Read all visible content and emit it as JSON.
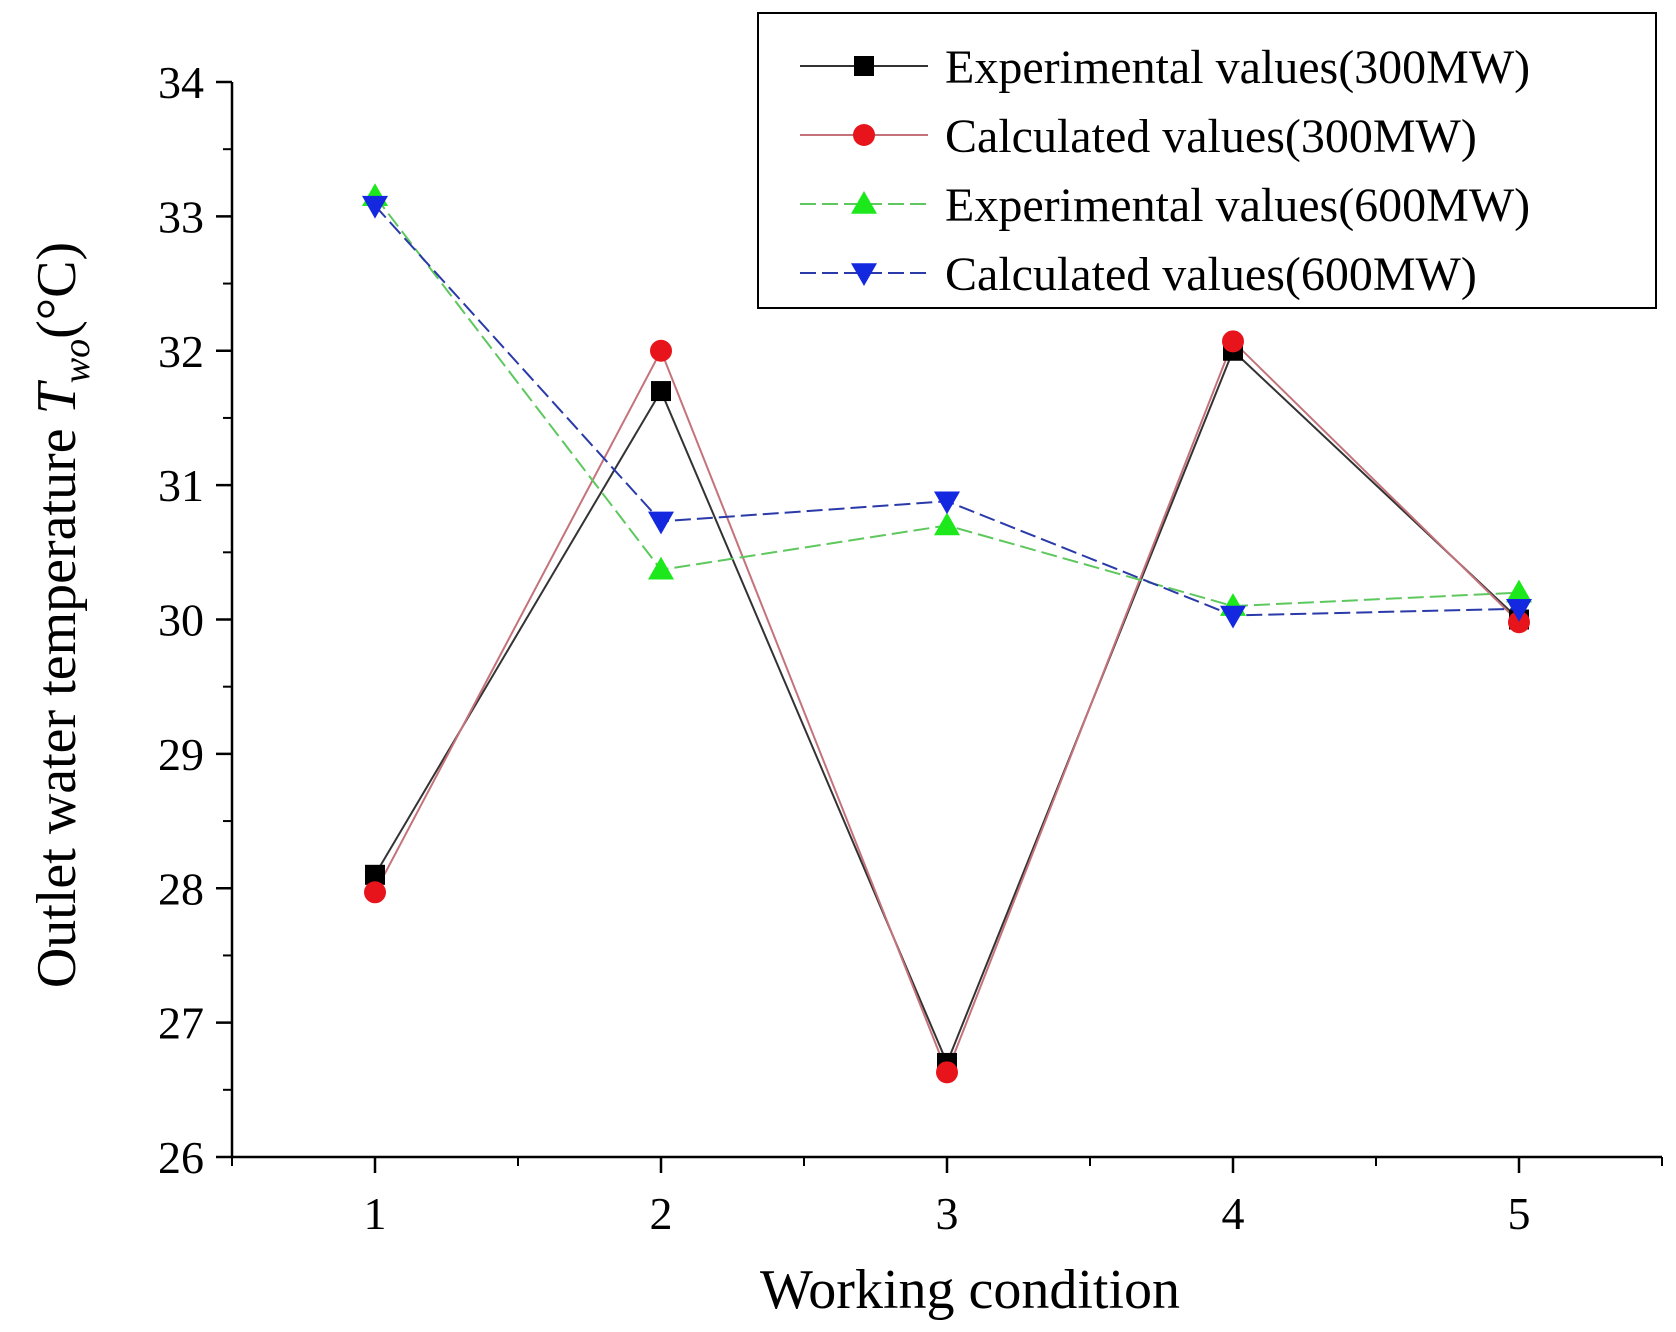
{
  "chart_data": {
    "type": "line",
    "title": "",
    "xlabel": "Working condition",
    "ylabel": {
      "main": "Outlet water temperature ",
      "symbol": "T",
      "subscript": "wo",
      "unit": "(°C)"
    },
    "categories": [
      1,
      2,
      3,
      4,
      5
    ],
    "xlim": [
      0.5,
      5.5
    ],
    "ylim": [
      26,
      34
    ],
    "x_ticks": [
      "1",
      "2",
      "3",
      "4",
      "5"
    ],
    "y_ticks": [
      "26",
      "27",
      "28",
      "29",
      "30",
      "31",
      "32",
      "33",
      "34"
    ],
    "legend_position": "top-right",
    "series": [
      {
        "name": "Experimental values(300MW)",
        "marker": "square",
        "color": "#000000",
        "line_color": "#333333",
        "dash": "solid",
        "values": [
          28.1,
          31.7,
          26.7,
          32.0,
          30.0
        ]
      },
      {
        "name": "Calculated values(300MW)",
        "marker": "circle",
        "color": "#e8141c",
        "line_color": "#c4737a",
        "dash": "solid",
        "values": [
          27.97,
          32.0,
          26.63,
          32.07,
          29.98
        ]
      },
      {
        "name": "Experimental values(600MW)",
        "marker": "triangle-up",
        "color": "#1ce81c",
        "line_color": "#5ec85e",
        "dash": "dashed",
        "values": [
          33.15,
          30.37,
          30.7,
          30.1,
          30.2
        ]
      },
      {
        "name": "Calculated values(600MW)",
        "marker": "triangle-down",
        "color": "#1428e0",
        "line_color": "#2a3aa8",
        "dash": "dashed",
        "values": [
          33.08,
          30.73,
          30.88,
          30.03,
          30.08
        ]
      }
    ]
  }
}
